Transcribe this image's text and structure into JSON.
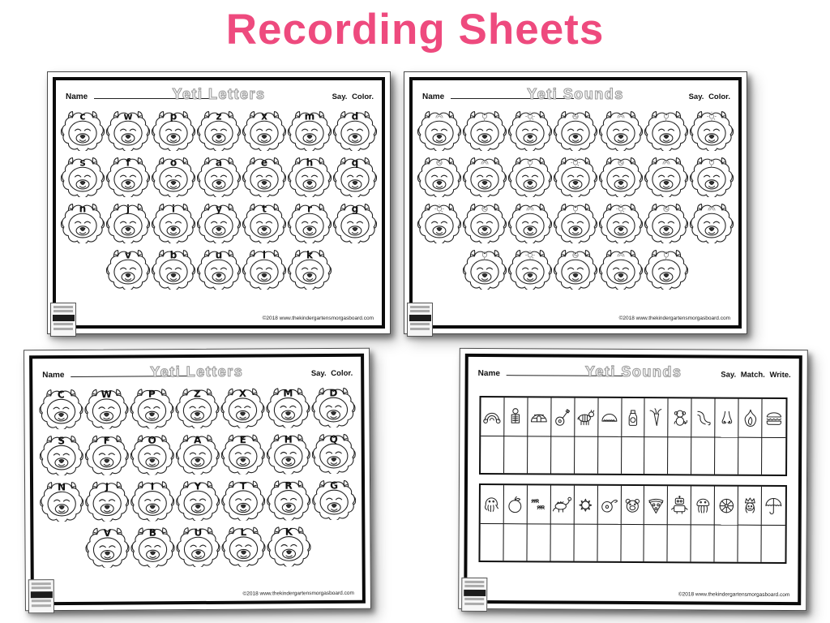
{
  "page": {
    "title": "Recording Sheets",
    "title_color": "#ee4a7e",
    "background": "#ffffff",
    "ink_color": "#1a1a1a"
  },
  "sheets": [
    {
      "position": "top-left",
      "title": "Yeti Letters",
      "name_label": "Name",
      "instructions": "Say.  Color.",
      "footer": "©2018  www.thekindergartensmorgasboard.com",
      "type": "yeti-letter-faces-lowercase",
      "letter_rows": [
        [
          "c",
          "w",
          "p",
          "z",
          "x",
          "m",
          "d"
        ],
        [
          "s",
          "f",
          "o",
          "a",
          "e",
          "h",
          "q"
        ],
        [
          "n",
          "j",
          "i",
          "y",
          "t",
          "r",
          "g"
        ],
        [
          "v",
          "b",
          "u",
          "l",
          "k"
        ]
      ]
    },
    {
      "position": "top-right",
      "title": "Yeti Sounds",
      "name_label": "Name",
      "instructions": "Say.  Color.",
      "footer": "©2018  www.thekindergartensmorgasboard.com",
      "type": "yeti-faces-with-tiny-pictures",
      "picture_rows": [
        7,
        7,
        7,
        5
      ]
    },
    {
      "position": "bottom-left",
      "title": "Yeti Letters",
      "name_label": "Name",
      "instructions": "Say.  Color.",
      "footer": "©2018  www.thekindergartensmorgasboard.com",
      "type": "yeti-letter-faces-uppercase",
      "letter_rows": [
        [
          "C",
          "W",
          "P",
          "Z",
          "X",
          "M",
          "D"
        ],
        [
          "S",
          "F",
          "O",
          "A",
          "E",
          "H",
          "Q"
        ],
        [
          "N",
          "J",
          "I",
          "Y",
          "T",
          "R",
          "G"
        ],
        [
          "V",
          "B",
          "U",
          "L",
          "K"
        ]
      ]
    },
    {
      "position": "bottom-right",
      "title": "Yeti Sounds",
      "name_label": "Name",
      "instructions": "Say.  Match.  Write.",
      "footer": "©2018  www.thekindergartensmorgasboard.com",
      "type": "picture-grid-with-writing-boxes",
      "icon_blocks": [
        [
          "rainbow",
          "x-ray",
          "igloo",
          "guitar",
          "zebra",
          "taco",
          "juice",
          "carrot",
          "monkey",
          "elbow",
          "nose",
          "fire",
          "hamburger"
        ],
        [
          "octopus",
          "apple",
          "ants",
          "dinosaur",
          "sun",
          "yo-yo",
          "bear",
          "pizza",
          "robot",
          "jellyfish",
          "wheel",
          "queen",
          "umbrella"
        ]
      ]
    }
  ]
}
